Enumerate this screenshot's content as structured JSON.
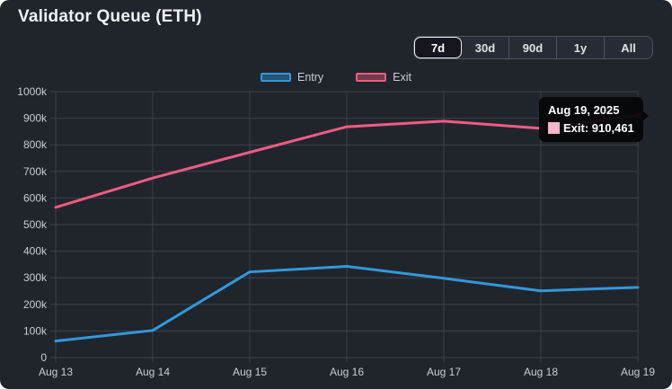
{
  "header": {
    "title": "Validator Queue (ETH)"
  },
  "range_buttons": {
    "items": [
      "7d",
      "30d",
      "90d",
      "1y",
      "All"
    ],
    "active": "7d"
  },
  "tooltip": {
    "title": "Aug 19, 2025",
    "label": "Exit: 910,461",
    "swatch_color": "#f8b6ca"
  },
  "colors": {
    "page_bg": "#20252c",
    "grid": "#3b414a",
    "axis_text": "#c9cdd3",
    "title_text": "#eef0f3",
    "button_text": "#dfe2e6",
    "button_border": "#4d545e",
    "button_group_bg": "#272c34",
    "button_active_bg": "#14181e"
  },
  "chart_data": {
    "type": "line",
    "title": "Validator Queue (ETH)",
    "categories": [
      "Aug 13",
      "Aug 14",
      "Aug 15",
      "Aug 16",
      "Aug 17",
      "Aug 18",
      "Aug 19"
    ],
    "series": [
      {
        "name": "Entry",
        "color": "#3398db",
        "values": [
          62000,
          102000,
          322000,
          343000,
          298000,
          251000,
          264000
        ]
      },
      {
        "name": "Exit",
        "color": "#ee5c81",
        "values": [
          565000,
          675000,
          772000,
          868000,
          889000,
          862000,
          910461
        ]
      }
    ],
    "ylim": [
      0,
      1000000
    ],
    "y_tick_step": 100000,
    "y_tick_labels": [
      "0",
      "100k",
      "200k",
      "300k",
      "400k",
      "500k",
      "600k",
      "700k",
      "800k",
      "900k",
      "1000k"
    ],
    "grid": true,
    "legend_position": "top",
    "end_marker_series": "Exit"
  }
}
